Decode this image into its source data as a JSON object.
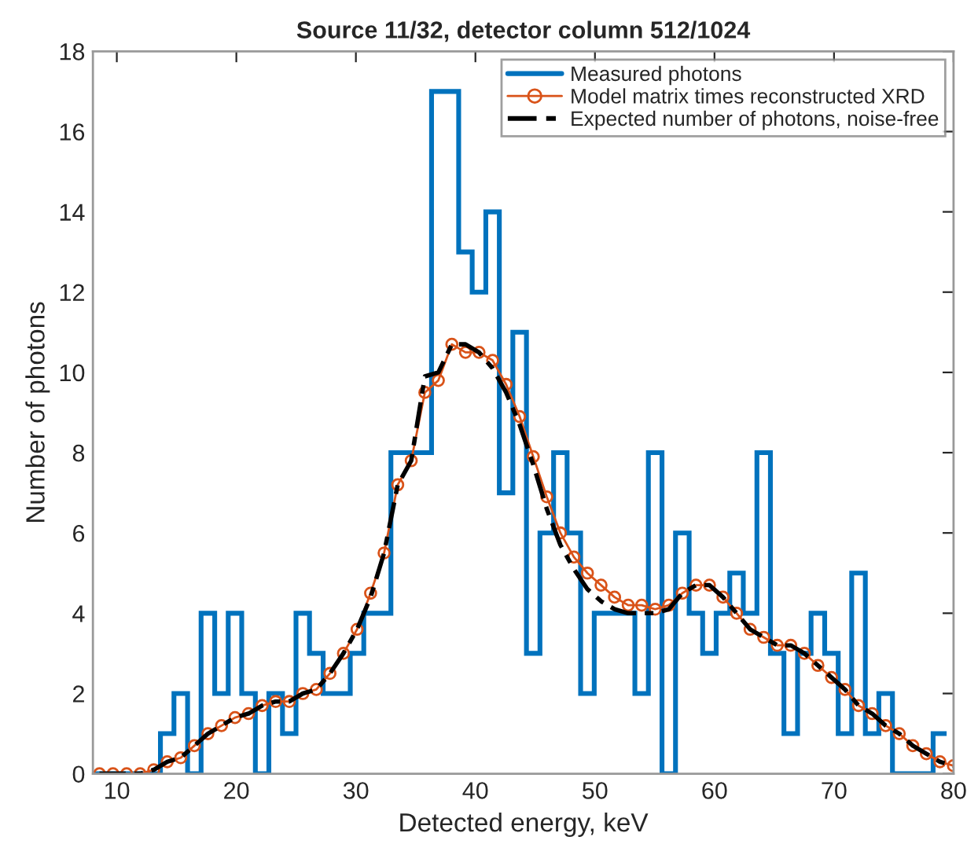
{
  "chart_data": {
    "type": "histogram",
    "title": "Source 11/32, detector column 512/1024",
    "xlabel": "Detected energy, keV",
    "ylabel": "Number of photons",
    "bins": [
      7.98,
      9.11,
      10.25,
      11.38,
      12.52,
      13.65,
      14.78,
      15.92,
      17.05,
      18.19,
      19.32,
      20.45,
      21.59,
      22.72,
      23.86,
      24.99,
      26.12,
      27.26,
      28.39,
      29.53,
      30.66,
      31.79,
      32.93,
      34.06,
      35.2,
      36.33,
      37.46,
      38.6,
      39.73,
      40.87,
      42.0,
      43.13,
      44.27,
      45.4,
      46.54,
      47.67,
      48.8,
      49.94,
      51.07,
      52.21,
      53.34,
      54.47,
      55.61,
      56.74,
      57.88,
      59.01,
      60.14,
      61.28,
      62.41,
      63.55,
      64.68,
      65.81,
      66.95,
      68.08,
      69.22,
      70.35,
      71.48,
      72.62,
      73.75,
      74.89,
      76.02,
      77.15,
      78.29,
      79.42
    ],
    "series": [
      {
        "name": "Measured photons",
        "color": "#0072bd",
        "values": [
          0,
          0,
          0,
          0,
          0,
          1,
          2,
          0,
          4,
          2,
          4,
          2,
          0,
          2,
          1,
          4,
          3,
          2,
          2,
          3,
          4,
          4,
          8,
          8,
          8,
          17,
          17,
          13,
          12,
          14,
          7,
          11,
          3,
          6,
          8,
          6,
          2,
          4,
          4,
          4,
          2,
          8,
          0,
          6,
          4,
          3,
          4,
          5,
          4,
          8,
          3,
          1,
          3,
          4,
          3,
          1,
          5,
          1,
          2,
          0,
          0,
          0,
          1
        ]
      },
      {
        "name": "Model matrix times reconstructed XRD",
        "type": "line",
        "marker": "circle",
        "line_style": "solid",
        "color": "#d95319",
        "x": [
          8.55,
          9.68,
          10.82,
          11.95,
          13.09,
          14.22,
          15.35,
          16.49,
          17.62,
          18.76,
          19.89,
          21.02,
          22.16,
          23.29,
          24.43,
          25.56,
          26.69,
          27.83,
          28.96,
          30.1,
          31.23,
          32.36,
          33.5,
          34.63,
          35.77,
          36.9,
          38.03,
          39.17,
          40.3,
          41.44,
          42.57,
          43.7,
          44.84,
          45.97,
          47.11,
          48.24,
          49.37,
          50.51,
          51.64,
          52.78,
          53.91,
          55.04,
          56.18,
          57.31,
          58.45,
          59.58,
          60.71,
          61.85,
          62.98,
          64.12,
          65.25,
          66.38,
          67.52,
          68.65,
          69.79,
          70.92,
          72.05,
          73.19,
          74.32,
          75.46,
          76.59,
          77.72,
          78.86,
          79.99
        ],
        "values": [
          0,
          0,
          0,
          0.0,
          0.1,
          0.3,
          0.4,
          0.7,
          1.0,
          1.2,
          1.4,
          1.5,
          1.7,
          1.8,
          1.8,
          2.0,
          2.1,
          2.5,
          3.0,
          3.6,
          4.5,
          5.5,
          7.2,
          7.8,
          9.5,
          9.8,
          10.7,
          10.5,
          10.5,
          10.3,
          9.7,
          8.9,
          7.9,
          6.9,
          6.0,
          5.4,
          5.0,
          4.7,
          4.4,
          4.2,
          4.2,
          4.1,
          4.2,
          4.5,
          4.7,
          4.7,
          4.4,
          4.0,
          3.6,
          3.4,
          3.2,
          3.2,
          3.0,
          2.7,
          2.4,
          2.1,
          1.7,
          1.5,
          1.2,
          1.0,
          0.7,
          0.5,
          0.3,
          0.2
        ]
      },
      {
        "name": "Expected number of photons, noise-free",
        "type": "line",
        "marker": "none",
        "line_style": "dashed",
        "color": "#000000",
        "x": [
          8.55,
          9.68,
          10.82,
          11.95,
          13.09,
          14.22,
          15.35,
          16.49,
          17.62,
          18.76,
          19.89,
          21.02,
          22.16,
          23.29,
          24.43,
          25.56,
          26.69,
          27.83,
          28.96,
          30.1,
          31.23,
          32.36,
          33.5,
          34.63,
          35.77,
          36.9,
          38.03,
          39.17,
          40.3,
          41.44,
          42.57,
          43.7,
          44.84,
          45.97,
          47.11,
          48.24,
          49.37,
          50.51,
          51.64,
          52.78,
          53.91,
          55.04,
          56.18,
          57.31,
          58.45,
          59.58,
          60.71,
          61.85,
          62.98,
          64.12,
          65.25,
          66.38,
          67.52,
          68.65,
          69.79,
          70.92,
          72.05,
          73.19,
          74.32,
          75.46,
          76.59,
          77.72,
          78.86,
          79.99
        ],
        "values": [
          0,
          0,
          0,
          0.0,
          0.1,
          0.3,
          0.4,
          0.7,
          1.0,
          1.2,
          1.4,
          1.5,
          1.7,
          1.8,
          1.8,
          2.0,
          2.1,
          2.5,
          3.0,
          3.6,
          4.4,
          5.5,
          7.2,
          7.8,
          9.9,
          10.0,
          10.7,
          10.7,
          10.5,
          10.1,
          9.5,
          8.7,
          7.7,
          6.6,
          5.7,
          5.1,
          4.6,
          4.3,
          4.1,
          4.0,
          4.0,
          4.0,
          4.1,
          4.5,
          4.7,
          4.7,
          4.4,
          4.0,
          3.6,
          3.4,
          3.2,
          3.2,
          3.0,
          2.7,
          2.4,
          2.1,
          1.7,
          1.5,
          1.2,
          1.0,
          0.7,
          0.5,
          0.3,
          0.2
        ]
      }
    ],
    "xlim": [
      8,
      80
    ],
    "ylim": [
      0,
      18
    ],
    "xticks": [
      10,
      20,
      30,
      40,
      50,
      60,
      70,
      80
    ],
    "yticks": [
      0,
      2,
      4,
      6,
      8,
      10,
      12,
      14,
      16,
      18
    ],
    "grid": false,
    "legend": "top right"
  }
}
